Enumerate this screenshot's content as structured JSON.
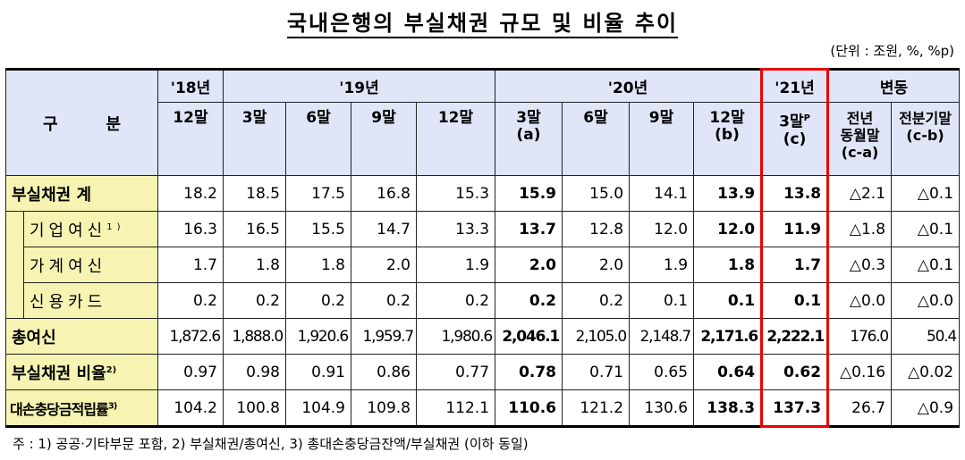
{
  "title": "국내은행의 부실채권 규모 및 비율 추이",
  "unit": "(단위 : 조원, %, %p)",
  "header": {
    "category": "구　　　분",
    "years": [
      "'18년",
      "'19년",
      "'20년",
      "'21년",
      "변동"
    ],
    "periods": [
      "12말",
      "3말",
      "6말",
      "9말",
      "12말",
      "3말\n(a)",
      "6말",
      "9말",
      "12말\n(b)",
      "3말",
      "(c)",
      "전년\n동월말\n(c-a)",
      "전분기말\n(c-b)"
    ],
    "p_mark": "P"
  },
  "rows": [
    {
      "label": "부실채권 계",
      "values": [
        "18.2",
        "18.5",
        "17.5",
        "16.8",
        "15.3",
        "15.9",
        "15.0",
        "14.1",
        "13.9",
        "13.8",
        "△2.1",
        "△0.1"
      ]
    },
    {
      "label": "기업여신",
      "note": "1)",
      "values": [
        "16.3",
        "16.5",
        "15.5",
        "14.7",
        "13.3",
        "13.7",
        "12.8",
        "12.0",
        "12.0",
        "11.9",
        "△1.8",
        "△0.1"
      ]
    },
    {
      "label": "가계여신",
      "values": [
        "1.7",
        "1.8",
        "1.8",
        "2.0",
        "1.9",
        "2.0",
        "2.0",
        "1.9",
        "1.8",
        "1.7",
        "△0.3",
        "△0.1"
      ]
    },
    {
      "label": "신용카드",
      "values": [
        "0.2",
        "0.2",
        "0.2",
        "0.2",
        "0.2",
        "0.2",
        "0.2",
        "0.1",
        "0.1",
        "0.1",
        "△0.0",
        "△0.0"
      ]
    },
    {
      "label": "총여신",
      "values": [
        "1,872.6",
        "1,888.0",
        "1,920.6",
        "1,959.7",
        "1,980.6",
        "2,046.1",
        "2,105.0",
        "2,148.7",
        "2,171.6",
        "2,222.1",
        "176.0",
        "50.4"
      ]
    },
    {
      "label": "부실채권 비율",
      "note": "2)",
      "values": [
        "0.97",
        "0.98",
        "0.91",
        "0.86",
        "0.77",
        "0.78",
        "0.71",
        "0.65",
        "0.64",
        "0.62",
        "△0.16",
        "△0.02"
      ]
    },
    {
      "label": "대손충당금적립률",
      "note": "3)",
      "values": [
        "104.2",
        "100.8",
        "104.9",
        "109.8",
        "112.1",
        "110.6",
        "121.2",
        "130.6",
        "138.3",
        "137.3",
        "26.7",
        "△0.9"
      ]
    }
  ],
  "footnote": "주 : 1) 공공·기타부문 포함,  2) 부실채권/총여신,  3) 총대손충당금잔액/부실채권 (이하 동일)"
}
